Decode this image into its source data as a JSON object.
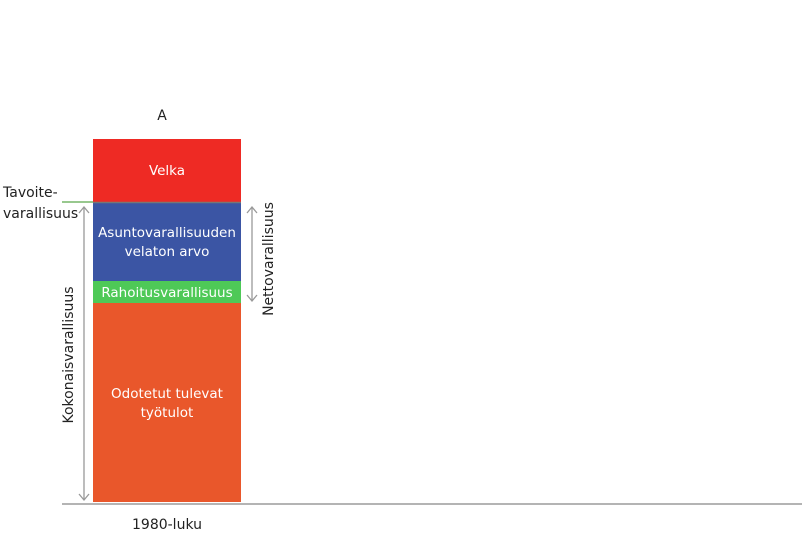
{
  "column_label": "A",
  "x_label": "1980-luku",
  "segments": {
    "debt": {
      "label": "Velka",
      "color": "#ee2a24"
    },
    "housing": {
      "label_line1": "Asuntovarallisuuden",
      "label_line2": "velaton arvo",
      "color": "#3b55a4"
    },
    "financial": {
      "label": "Rahoitusvarallisuus",
      "color": "#4ec957"
    },
    "earnings": {
      "label_line1": "Odotetut tulevat",
      "label_line2": "työtulot",
      "color": "#e9572b"
    }
  },
  "target": {
    "label_line1": "Tavoite-",
    "label_line2": "varallisuus",
    "color": "#5aa64a"
  },
  "total_wealth_label": "Kokonaisvarallisuus",
  "net_wealth_label": "Nettovarallisuus"
}
